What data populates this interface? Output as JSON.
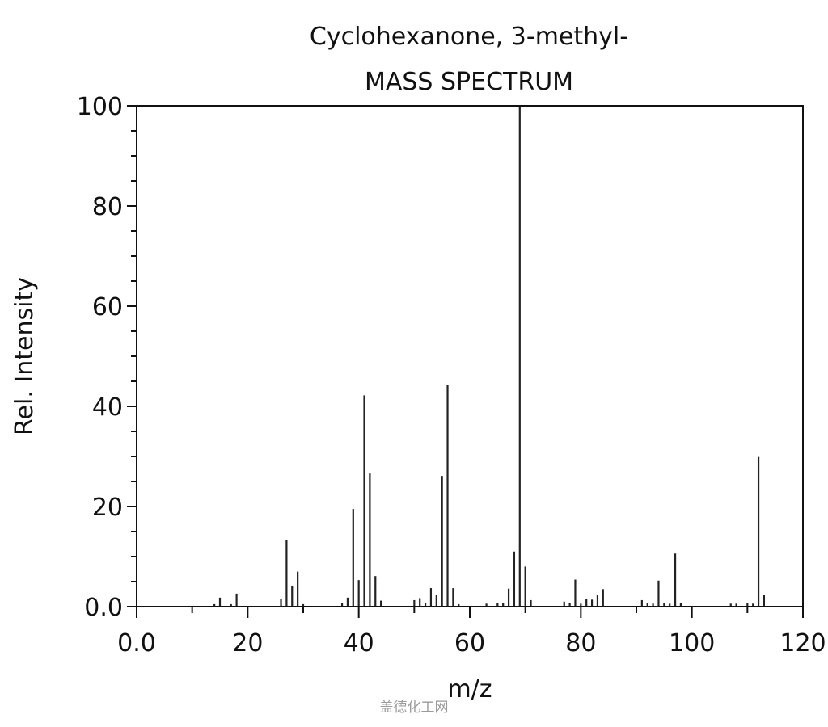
{
  "chart_data": {
    "type": "bar",
    "title": "Cyclohexanone, 3-methyl-",
    "subtitle": "MASS SPECTRUM",
    "xlabel": "m/z",
    "ylabel": "Rel. Intensity",
    "xlim": [
      0,
      120
    ],
    "ylim": [
      0,
      100
    ],
    "x_ticks": [
      0,
      20,
      40,
      60,
      80,
      100,
      120
    ],
    "x_tick_labels": [
      "0.0",
      "20",
      "40",
      "60",
      "80",
      "100",
      "120"
    ],
    "y_ticks": [
      0,
      20,
      40,
      60,
      80,
      100
    ],
    "y_tick_labels": [
      "0.0",
      "20",
      "40",
      "60",
      "80",
      "100"
    ],
    "grid": false,
    "series": [
      {
        "x": [
          14,
          15,
          17,
          18,
          26,
          27,
          28,
          29,
          30,
          37,
          38,
          39,
          40,
          41,
          42,
          43,
          44,
          50,
          51,
          52,
          53,
          54,
          55,
          56,
          57,
          58,
          63,
          65,
          66,
          67,
          68,
          69,
          70,
          71,
          77,
          78,
          79,
          80,
          81,
          82,
          83,
          84,
          91,
          92,
          93,
          94,
          95,
          96,
          97,
          98,
          107,
          108,
          110,
          111,
          112,
          113
        ],
        "values": [
          0.5,
          1.8,
          0.5,
          2.6,
          1.5,
          13.3,
          4.2,
          7.0,
          0.5,
          0.8,
          1.8,
          19.5,
          5.3,
          42.2,
          26.6,
          6.1,
          1.2,
          1.3,
          1.7,
          0.8,
          3.7,
          2.4,
          26.1,
          44.3,
          3.7,
          0.5,
          0.6,
          0.8,
          0.7,
          3.6,
          11.0,
          100.0,
          8.0,
          1.3,
          1.0,
          0.7,
          5.4,
          0.6,
          1.5,
          1.4,
          2.4,
          3.5,
          1.3,
          0.8,
          0.6,
          5.2,
          0.7,
          0.6,
          10.6,
          0.7,
          0.6,
          0.6,
          0.7,
          0.6,
          29.9,
          2.3
        ]
      }
    ]
  },
  "watermark": "盖德化工网"
}
